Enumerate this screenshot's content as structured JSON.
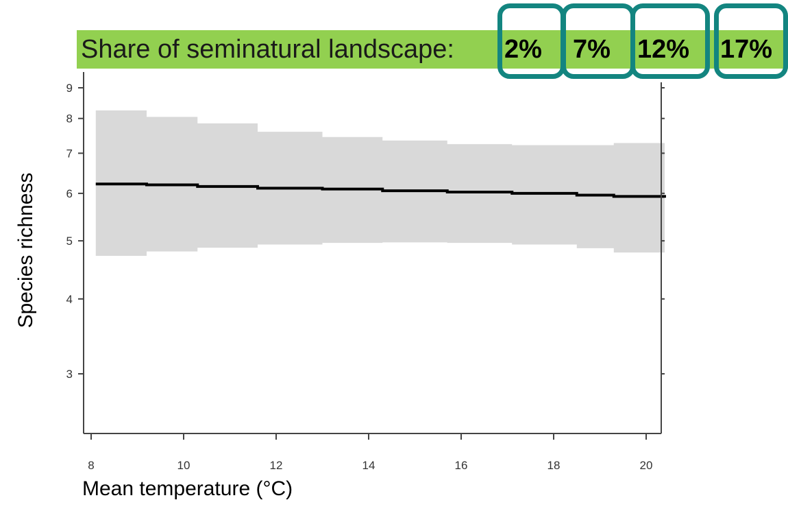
{
  "legend": {
    "prefix": "Share of seminatural landscape:",
    "options": [
      {
        "label": "2%",
        "selected": true
      },
      {
        "label": "7%",
        "selected": true
      },
      {
        "label": "12%",
        "selected": true
      },
      {
        "label": "17%",
        "selected": true
      }
    ],
    "banner_color": "#92d050",
    "ring_color": "#138580"
  },
  "chart_data": {
    "type": "line",
    "xlabel": "Mean temperature (°C)",
    "ylabel": "Species richness",
    "y_scale": "log",
    "xlim": [
      7.8,
      20.7
    ],
    "ylim": [
      2.45,
      9.5
    ],
    "x_ticks": [
      8,
      10,
      12,
      14,
      16,
      18,
      20
    ],
    "y_ticks": [
      3,
      4,
      5,
      6,
      7,
      8,
      9
    ],
    "grid": false,
    "series": [
      {
        "x": [
          8.1,
          9.2,
          10.3,
          11.6,
          13.0,
          14.3,
          15.7,
          17.1,
          18.5,
          19.3,
          20.4
        ],
        "y": [
          6.22,
          6.2,
          6.16,
          6.12,
          6.1,
          6.06,
          6.03,
          6.0,
          5.96,
          5.93,
          5.9
        ],
        "lower": [
          4.72,
          4.8,
          4.87,
          4.93,
          4.96,
          4.97,
          4.96,
          4.93,
          4.86,
          4.78,
          4.72
        ],
        "upper": [
          8.25,
          8.05,
          7.85,
          7.6,
          7.45,
          7.35,
          7.25,
          7.22,
          7.22,
          7.28,
          7.35
        ],
        "line_color": "#000000",
        "band_color": "#d9d9d9"
      }
    ]
  }
}
